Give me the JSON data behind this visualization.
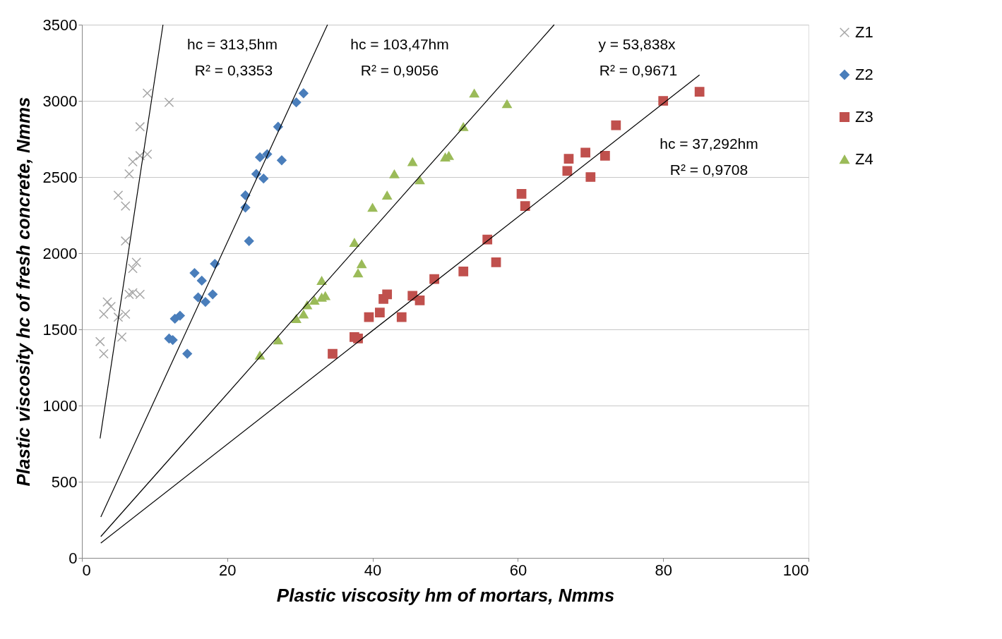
{
  "chart_data": {
    "type": "scatter",
    "xlabel": "Plastic viscosity hm of mortars, Nmms",
    "ylabel": "Plastic viscosity hc of fresh concrete, Nmms",
    "xlim": [
      0,
      100
    ],
    "xticks": [
      0,
      20,
      40,
      60,
      80,
      100
    ],
    "ylim": [
      0,
      3500
    ],
    "yticks": [
      0,
      500,
      1000,
      1500,
      2000,
      2500,
      3000,
      3500
    ],
    "grid": "y",
    "legend": "right",
    "series": [
      {
        "name": "Z1",
        "marker": "cross",
        "color": "#a6a6a6",
        "x": [
          2.5,
          3,
          3,
          3.5,
          4,
          5,
          5.5,
          6,
          5,
          6,
          6,
          7,
          7,
          8,
          7.5,
          6.5,
          6.5,
          7,
          8,
          9,
          8,
          9,
          12
        ],
        "values": [
          1420,
          1340,
          1600,
          1680,
          1650,
          1580,
          1450,
          1600,
          2380,
          2310,
          2080,
          1900,
          1740,
          1730,
          1940,
          1730,
          2520,
          2600,
          2640,
          2650,
          2830,
          3050,
          2990
        ]
      },
      {
        "name": "Z2",
        "marker": "diamond",
        "color": "#4a7ebb",
        "x": [
          12,
          12.5,
          14.5,
          12.8,
          13.5,
          15.5,
          16,
          17,
          18,
          16.5,
          18.3,
          23,
          22.5,
          22.5,
          24,
          25,
          24.5,
          25.5,
          27,
          27.5,
          29.5,
          30.5
        ],
        "values": [
          1440,
          1430,
          1340,
          1570,
          1590,
          1870,
          1710,
          1680,
          1730,
          1820,
          1930,
          2080,
          2380,
          2300,
          2520,
          2490,
          2630,
          2650,
          2830,
          2610,
          2990,
          3050
        ]
      },
      {
        "name": "Z3",
        "marker": "square",
        "color": "#c0504d",
        "x": [
          34.5,
          37.5,
          38,
          39.5,
          41,
          41.5,
          42,
          44,
          45.5,
          46.5,
          48.5,
          52.5,
          55.8,
          57,
          60.5,
          61,
          66.8,
          67,
          69.3,
          70,
          72,
          73.5,
          80,
          85
        ],
        "values": [
          1340,
          1450,
          1440,
          1580,
          1610,
          1700,
          1730,
          1580,
          1720,
          1690,
          1830,
          1880,
          2090,
          1940,
          2390,
          2310,
          2540,
          2620,
          2660,
          2500,
          2640,
          2840,
          3000,
          3060
        ]
      },
      {
        "name": "Z4",
        "marker": "triangle",
        "color": "#9bbb59",
        "x": [
          24.5,
          27,
          29.5,
          30.5,
          31,
          32,
          33,
          33.5,
          33,
          37.5,
          38,
          38.5,
          40,
          42,
          43,
          45.5,
          46.5,
          50,
          50.5,
          52.5,
          54,
          58.5
        ],
        "values": [
          1330,
          1430,
          1570,
          1600,
          1660,
          1690,
          1710,
          1720,
          1820,
          2070,
          1870,
          1930,
          2300,
          2380,
          2520,
          2600,
          2480,
          2630,
          2640,
          2830,
          3050,
          2980
        ]
      },
      {
        "type": "line",
        "color": "#000000",
        "x": [
          2.5,
          11.16
        ],
        "values": [
          784,
          3500
        ]
      },
      {
        "type": "line",
        "color": "#000000",
        "x": [
          2.6,
          33.8
        ],
        "values": [
          269,
          3500
        ]
      },
      {
        "type": "line",
        "color": "#000000",
        "x": [
          2.6,
          65
        ],
        "values": [
          140,
          3500
        ]
      },
      {
        "type": "line",
        "color": "#000000",
        "x": [
          2.6,
          85
        ],
        "values": [
          97,
          3170
        ]
      }
    ],
    "annotations": [
      "hc = 313,5hm",
      "R² = 0,3353",
      "hc = 103,47hm",
      "R² = 0,9056",
      "y = 53,838x",
      "R² = 0,9671",
      "hc = 37,292hm",
      "R² = 0,9708"
    ]
  }
}
